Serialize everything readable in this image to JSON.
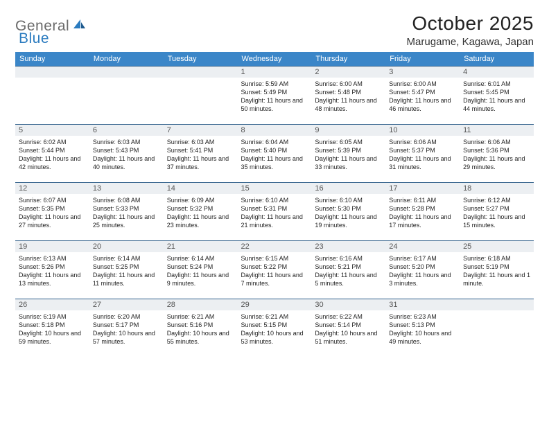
{
  "logo": {
    "text1": "General",
    "text2": "Blue"
  },
  "title": "October 2025",
  "location": "Marugame, Kagawa, Japan",
  "colors": {
    "header_bg": "#3b86c8",
    "header_text": "#ffffff",
    "cell_border": "#2f5f8a",
    "daynum_bg": "#eceff2",
    "logo_gray": "#6a6a6a",
    "logo_blue": "#2b7bbf"
  },
  "dayNames": [
    "Sunday",
    "Monday",
    "Tuesday",
    "Wednesday",
    "Thursday",
    "Friday",
    "Saturday"
  ],
  "weeks": [
    [
      {
        "n": "",
        "sr": "",
        "ss": "",
        "dl": ""
      },
      {
        "n": "",
        "sr": "",
        "ss": "",
        "dl": ""
      },
      {
        "n": "",
        "sr": "",
        "ss": "",
        "dl": ""
      },
      {
        "n": "1",
        "sr": "Sunrise: 5:59 AM",
        "ss": "Sunset: 5:49 PM",
        "dl": "Daylight: 11 hours and 50 minutes."
      },
      {
        "n": "2",
        "sr": "Sunrise: 6:00 AM",
        "ss": "Sunset: 5:48 PM",
        "dl": "Daylight: 11 hours and 48 minutes."
      },
      {
        "n": "3",
        "sr": "Sunrise: 6:00 AM",
        "ss": "Sunset: 5:47 PM",
        "dl": "Daylight: 11 hours and 46 minutes."
      },
      {
        "n": "4",
        "sr": "Sunrise: 6:01 AM",
        "ss": "Sunset: 5:45 PM",
        "dl": "Daylight: 11 hours and 44 minutes."
      }
    ],
    [
      {
        "n": "5",
        "sr": "Sunrise: 6:02 AM",
        "ss": "Sunset: 5:44 PM",
        "dl": "Daylight: 11 hours and 42 minutes."
      },
      {
        "n": "6",
        "sr": "Sunrise: 6:03 AM",
        "ss": "Sunset: 5:43 PM",
        "dl": "Daylight: 11 hours and 40 minutes."
      },
      {
        "n": "7",
        "sr": "Sunrise: 6:03 AM",
        "ss": "Sunset: 5:41 PM",
        "dl": "Daylight: 11 hours and 37 minutes."
      },
      {
        "n": "8",
        "sr": "Sunrise: 6:04 AM",
        "ss": "Sunset: 5:40 PM",
        "dl": "Daylight: 11 hours and 35 minutes."
      },
      {
        "n": "9",
        "sr": "Sunrise: 6:05 AM",
        "ss": "Sunset: 5:39 PM",
        "dl": "Daylight: 11 hours and 33 minutes."
      },
      {
        "n": "10",
        "sr": "Sunrise: 6:06 AM",
        "ss": "Sunset: 5:37 PM",
        "dl": "Daylight: 11 hours and 31 minutes."
      },
      {
        "n": "11",
        "sr": "Sunrise: 6:06 AM",
        "ss": "Sunset: 5:36 PM",
        "dl": "Daylight: 11 hours and 29 minutes."
      }
    ],
    [
      {
        "n": "12",
        "sr": "Sunrise: 6:07 AM",
        "ss": "Sunset: 5:35 PM",
        "dl": "Daylight: 11 hours and 27 minutes."
      },
      {
        "n": "13",
        "sr": "Sunrise: 6:08 AM",
        "ss": "Sunset: 5:33 PM",
        "dl": "Daylight: 11 hours and 25 minutes."
      },
      {
        "n": "14",
        "sr": "Sunrise: 6:09 AM",
        "ss": "Sunset: 5:32 PM",
        "dl": "Daylight: 11 hours and 23 minutes."
      },
      {
        "n": "15",
        "sr": "Sunrise: 6:10 AM",
        "ss": "Sunset: 5:31 PM",
        "dl": "Daylight: 11 hours and 21 minutes."
      },
      {
        "n": "16",
        "sr": "Sunrise: 6:10 AM",
        "ss": "Sunset: 5:30 PM",
        "dl": "Daylight: 11 hours and 19 minutes."
      },
      {
        "n": "17",
        "sr": "Sunrise: 6:11 AM",
        "ss": "Sunset: 5:28 PM",
        "dl": "Daylight: 11 hours and 17 minutes."
      },
      {
        "n": "18",
        "sr": "Sunrise: 6:12 AM",
        "ss": "Sunset: 5:27 PM",
        "dl": "Daylight: 11 hours and 15 minutes."
      }
    ],
    [
      {
        "n": "19",
        "sr": "Sunrise: 6:13 AM",
        "ss": "Sunset: 5:26 PM",
        "dl": "Daylight: 11 hours and 13 minutes."
      },
      {
        "n": "20",
        "sr": "Sunrise: 6:14 AM",
        "ss": "Sunset: 5:25 PM",
        "dl": "Daylight: 11 hours and 11 minutes."
      },
      {
        "n": "21",
        "sr": "Sunrise: 6:14 AM",
        "ss": "Sunset: 5:24 PM",
        "dl": "Daylight: 11 hours and 9 minutes."
      },
      {
        "n": "22",
        "sr": "Sunrise: 6:15 AM",
        "ss": "Sunset: 5:22 PM",
        "dl": "Daylight: 11 hours and 7 minutes."
      },
      {
        "n": "23",
        "sr": "Sunrise: 6:16 AM",
        "ss": "Sunset: 5:21 PM",
        "dl": "Daylight: 11 hours and 5 minutes."
      },
      {
        "n": "24",
        "sr": "Sunrise: 6:17 AM",
        "ss": "Sunset: 5:20 PM",
        "dl": "Daylight: 11 hours and 3 minutes."
      },
      {
        "n": "25",
        "sr": "Sunrise: 6:18 AM",
        "ss": "Sunset: 5:19 PM",
        "dl": "Daylight: 11 hours and 1 minute."
      }
    ],
    [
      {
        "n": "26",
        "sr": "Sunrise: 6:19 AM",
        "ss": "Sunset: 5:18 PM",
        "dl": "Daylight: 10 hours and 59 minutes."
      },
      {
        "n": "27",
        "sr": "Sunrise: 6:20 AM",
        "ss": "Sunset: 5:17 PM",
        "dl": "Daylight: 10 hours and 57 minutes."
      },
      {
        "n": "28",
        "sr": "Sunrise: 6:21 AM",
        "ss": "Sunset: 5:16 PM",
        "dl": "Daylight: 10 hours and 55 minutes."
      },
      {
        "n": "29",
        "sr": "Sunrise: 6:21 AM",
        "ss": "Sunset: 5:15 PM",
        "dl": "Daylight: 10 hours and 53 minutes."
      },
      {
        "n": "30",
        "sr": "Sunrise: 6:22 AM",
        "ss": "Sunset: 5:14 PM",
        "dl": "Daylight: 10 hours and 51 minutes."
      },
      {
        "n": "31",
        "sr": "Sunrise: 6:23 AM",
        "ss": "Sunset: 5:13 PM",
        "dl": "Daylight: 10 hours and 49 minutes."
      },
      {
        "n": "",
        "sr": "",
        "ss": "",
        "dl": ""
      }
    ]
  ]
}
